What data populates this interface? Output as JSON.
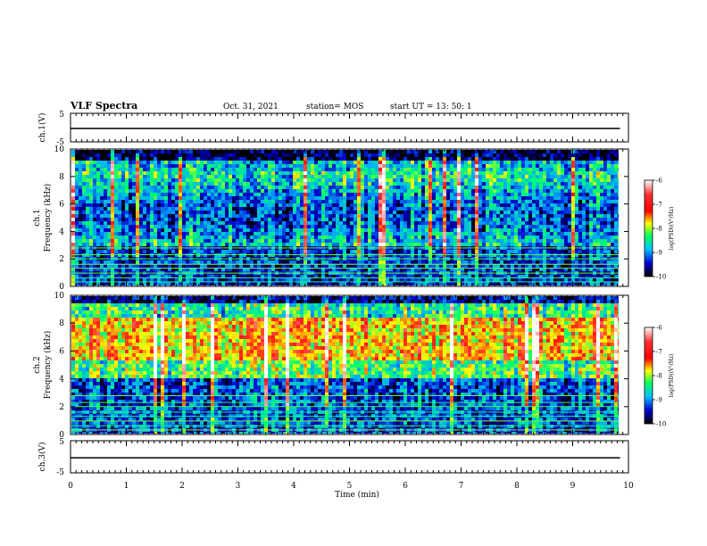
{
  "header": {
    "title": "VLF Spectra",
    "date": "Oct. 31, 2021",
    "station": "station= MOS",
    "start_time": "start  UT =   13: 50: 1"
  },
  "chart_data": [
    {
      "type": "line",
      "name": "ch1-waveform",
      "ylabel": "ch.1(V)",
      "ylim": [
        -5,
        5
      ],
      "yticks": [
        "5",
        "-5"
      ],
      "x": [
        0,
        9.85
      ],
      "values": [
        -0.3,
        -0.3
      ]
    },
    {
      "type": "heatmap",
      "name": "ch1-spectrogram",
      "ylabel": "ch.1\nFrequency (kHz)",
      "ylim": [
        0,
        10
      ],
      "yticks": [
        "0",
        "2",
        "4",
        "6",
        "8",
        "10"
      ],
      "colorbar": {
        "label": "log(PSD)(V²/Hz)",
        "range": [
          -10,
          -6
        ],
        "ticks": [
          "-6",
          "-7",
          "-8",
          "-9",
          "-10"
        ]
      }
    },
    {
      "type": "heatmap",
      "name": "ch2-spectrogram",
      "ylabel": "ch.2\nFrequency (kHz)",
      "ylim": [
        0,
        10
      ],
      "yticks": [
        "0",
        "2",
        "4",
        "6",
        "8",
        "10"
      ],
      "colorbar": {
        "label": "log(PSD)(V²/Hz)",
        "range": [
          -10,
          -6
        ],
        "ticks": [
          "-6",
          "-7",
          "-8",
          "-9",
          "-10"
        ]
      }
    },
    {
      "type": "line",
      "name": "ch3-waveform",
      "ylabel": "ch.3(V)",
      "ylim": [
        -5,
        5
      ],
      "yticks": [
        "5",
        "-5"
      ],
      "x": [
        0,
        9.85
      ],
      "values": [
        -0.3,
        -0.3
      ]
    }
  ],
  "xaxis": {
    "label": "Time  (min)",
    "xlim": [
      0,
      10
    ],
    "ticks": [
      "0",
      "1",
      "2",
      "3",
      "4",
      "5",
      "6",
      "7",
      "8",
      "9",
      "10"
    ]
  },
  "colors": {
    "colormap": [
      "#ffffff",
      "#ff2020",
      "#ffff00",
      "#00ff80",
      "#00c0ff",
      "#0000c0",
      "#000000"
    ]
  }
}
